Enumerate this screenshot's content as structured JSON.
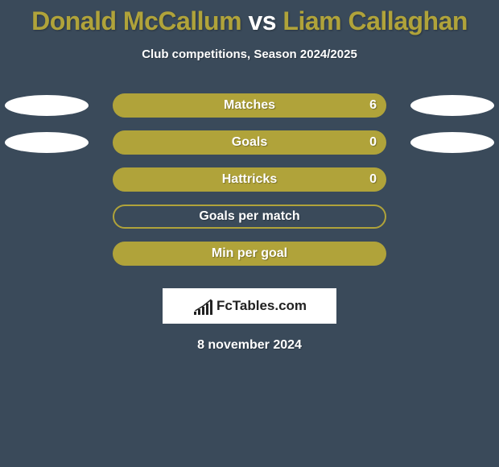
{
  "title": {
    "player1": "Donald McCallum",
    "vs": "vs",
    "player2": "Liam Callaghan",
    "player1_color": "#b0a33a",
    "vs_color": "#ffffff",
    "player2_color": "#b0a33a"
  },
  "subtitle": "Club competitions, Season 2024/2025",
  "stats": {
    "rows": [
      {
        "label": "Matches",
        "value": "6",
        "fill": true,
        "show_ellipses": true
      },
      {
        "label": "Goals",
        "value": "0",
        "fill": true,
        "show_ellipses": true
      },
      {
        "label": "Hattricks",
        "value": "0",
        "fill": true,
        "show_ellipses": false
      },
      {
        "label": "Goals per match",
        "value": "",
        "fill": false,
        "show_ellipses": false
      },
      {
        "label": "Min per goal",
        "value": "",
        "fill": true,
        "show_ellipses": false
      }
    ],
    "bar_color": "#b0a33a",
    "ellipse_color": "#ffffff",
    "label_color": "#ffffff",
    "label_fontsize": 16
  },
  "logo": {
    "text": "FcTables.com",
    "icon_bars": [
      4,
      7,
      10,
      14,
      18
    ],
    "icon_color": "#222222"
  },
  "date": "8 november 2024",
  "background_color": "#3a4a5a"
}
